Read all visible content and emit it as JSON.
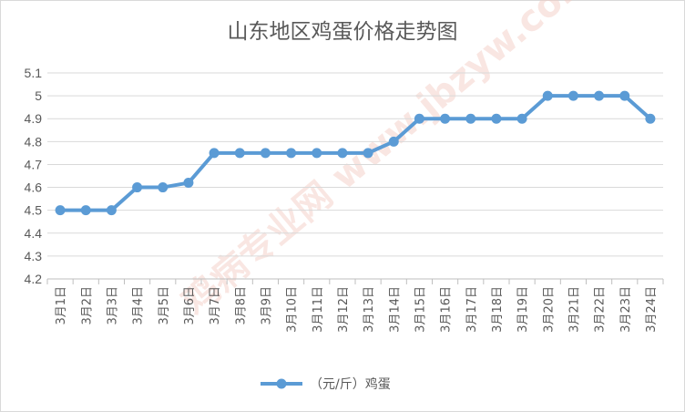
{
  "chart_data": {
    "type": "line",
    "title": "山东地区鸡蛋价格走势图",
    "categories": [
      "3月1日",
      "3月2日",
      "3月3日",
      "3月4日",
      "3月5日",
      "3月6日",
      "3月7日",
      "3月8日",
      "3月9日",
      "3月10日",
      "3月11日",
      "3月12日",
      "3月13日",
      "3月14日",
      "3月15日",
      "3月16日",
      "3月17日",
      "3月18日",
      "3月19日",
      "3月20日",
      "3月21日",
      "3月22日",
      "3月23日",
      "3月24日"
    ],
    "series": [
      {
        "name": "（元/斤）鸡蛋",
        "values": [
          4.5,
          4.5,
          4.5,
          4.6,
          4.6,
          4.62,
          4.75,
          4.75,
          4.75,
          4.75,
          4.75,
          4.75,
          4.75,
          4.8,
          4.9,
          4.9,
          4.9,
          4.9,
          4.9,
          5.0,
          5.0,
          5.0,
          5.0,
          4.9
        ]
      }
    ],
    "yticks": [
      "4.2",
      "4.3",
      "4.4",
      "4.5",
      "4.6",
      "4.7",
      "4.8",
      "4.9",
      "5",
      "5.1"
    ],
    "ylim": [
      4.2,
      5.1
    ],
    "xlabel": "",
    "ylabel": "",
    "grid": true,
    "legend": "bottom",
    "series_color": "#5b9bd5",
    "watermark": "鸡病专业网 www.jbzyw.com 养殖业"
  }
}
